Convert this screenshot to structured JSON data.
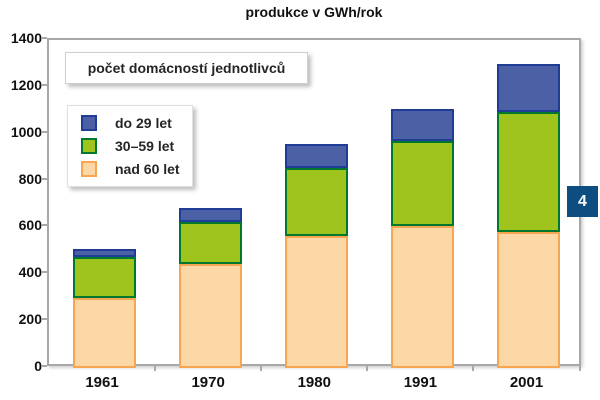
{
  "title": "produkce v GWh/rok",
  "legend": {
    "box_title": "počet domácností jednotlivců",
    "items": [
      {
        "label": "do 29 let",
        "fill": "#4c60a6",
        "border": "#203d96"
      },
      {
        "label": "30–59 let",
        "fill": "#9fc41e",
        "border": "#00792f"
      },
      {
        "label": "nad 60 let",
        "fill": "#fcd7a6",
        "border": "#f7a54e"
      }
    ]
  },
  "badge": {
    "label": "4",
    "color": "#0d4d7f"
  },
  "axes": {
    "frame_color": "#a8a8a8",
    "yticks": [
      0,
      200,
      400,
      600,
      800,
      1000,
      1200,
      1400
    ]
  },
  "chart_data": {
    "type": "bar",
    "stacked": true,
    "title": "produkce v GWh/rok",
    "categories": [
      "1961",
      "1970",
      "1980",
      "1991",
      "2001"
    ],
    "series": [
      {
        "name": "nad 60 let",
        "values": [
          280,
          425,
          545,
          590,
          565
        ],
        "fill": "#fcd7a6",
        "border": "#f7a54e"
      },
      {
        "name": "30–59 let",
        "values": [
          175,
          180,
          290,
          360,
          510
        ],
        "fill": "#9fc41e",
        "border": "#00792f"
      },
      {
        "name": "do 29 let",
        "values": [
          35,
          60,
          105,
          140,
          205
        ],
        "fill": "#4c60a6",
        "border": "#203d96"
      }
    ],
    "totals": [
      490,
      665,
      940,
      1090,
      1280
    ],
    "xlabel": "",
    "ylabel": "",
    "ylim": [
      0,
      1400
    ],
    "ytick_step": 200,
    "grid": false,
    "legend_position": "top-left"
  }
}
